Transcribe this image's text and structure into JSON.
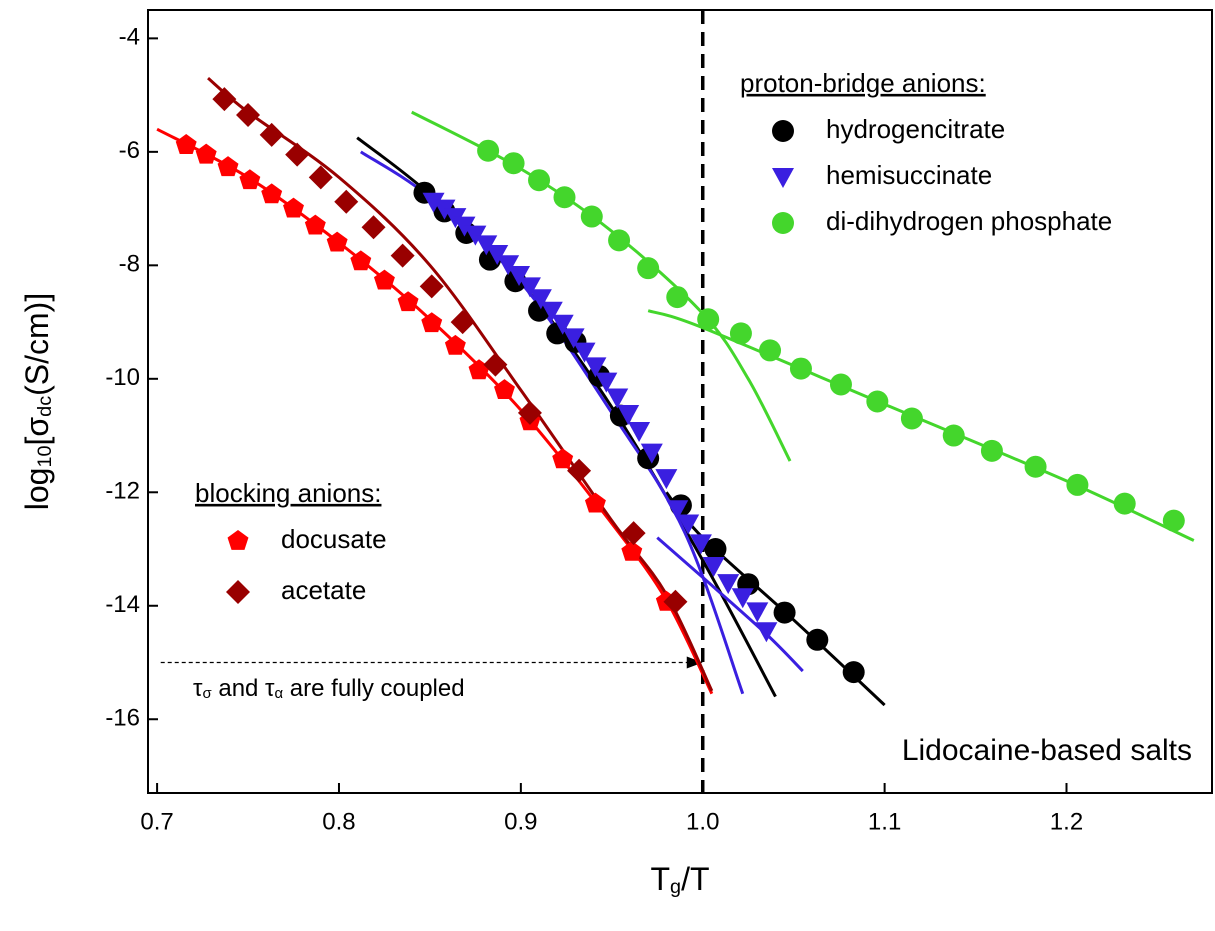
{
  "chart_data": {
    "type": "scatter",
    "x_label": [
      "T",
      "g",
      "/T"
    ],
    "y_label": [
      "log",
      "10",
      "[σ",
      "dc",
      "(S/cm)]"
    ],
    "xlim": [
      0.695,
      1.28
    ],
    "ylim": [
      -17.3,
      -3.5
    ],
    "xticks": [
      0.7,
      0.8,
      0.9,
      {
        "value": 1,
        "label": "1.0"
      },
      1.1,
      1.2
    ],
    "yticks": [
      -4,
      -6,
      -8,
      -10,
      -12,
      -14,
      -16
    ],
    "vline": 1,
    "arrow": {
      "x": [
        0.702,
        1.0
      ],
      "y": -15,
      "text": [
        "τ",
        "σ",
        " and τ",
        "α",
        " are fully coupled"
      ]
    },
    "annotation": "Lidocaine-based salts",
    "groups": [
      {
        "title": "proton-bridge anions:",
        "corner": "upper right",
        "series": [
          {
            "name": "hydrogencitrate",
            "marker": "circle",
            "color": "#000000",
            "x": [
              0.847,
              0.858,
              0.87,
              0.883,
              0.897,
              0.91,
              0.92,
              0.93,
              0.943,
              0.955,
              0.97,
              0.988,
              1.007,
              1.025,
              1.045,
              1.063,
              1.083
            ],
            "values": [
              -6.72,
              -7.05,
              -7.43,
              -7.9,
              -8.28,
              -8.8,
              -9.2,
              -9.35,
              -9.95,
              -10.65,
              -11.4,
              -12.23,
              -13.0,
              -13.62,
              -14.12,
              -14.6,
              -15.17
            ],
            "fits": [
              {
                "x": [
                  0.81,
                  0.85,
                  0.9,
                  0.95,
                  1.0,
                  1.04
                ],
                "values": [
                  -5.75,
                  -6.75,
                  -8.3,
                  -10.5,
                  -13.2,
                  -15.6
                ]
              },
              {
                "x": [
                  0.98,
                  1.0,
                  1.05,
                  1.1
                ],
                "values": [
                  -12.0,
                  -12.8,
                  -14.25,
                  -15.75
                ]
              }
            ]
          },
          {
            "name": "hemisuccinate",
            "marker": "triangle-down",
            "color": "#3a1fe0",
            "x": [
              0.852,
              0.858,
              0.864,
              0.869,
              0.875,
              0.881,
              0.887,
              0.893,
              0.899,
              0.905,
              0.911,
              0.917,
              0.923,
              0.929,
              0.935,
              0.941,
              0.947,
              0.953,
              0.959,
              0.965,
              0.972,
              0.98,
              0.986,
              0.992,
              0.999,
              1.006,
              1.014,
              1.022,
              1.03,
              1.035
            ],
            "values": [
              -6.88,
              -7.0,
              -7.15,
              -7.3,
              -7.46,
              -7.63,
              -7.8,
              -7.98,
              -8.17,
              -8.37,
              -8.58,
              -8.8,
              -9.03,
              -9.27,
              -9.52,
              -9.78,
              -10.05,
              -10.33,
              -10.62,
              -10.92,
              -11.3,
              -11.75,
              -12.3,
              -12.55,
              -12.9,
              -13.3,
              -13.6,
              -13.85,
              -14.1,
              -14.45
            ],
            "fits": [
              {
                "x": [
                  0.812,
                  0.85,
                  0.9,
                  0.95,
                  0.99,
                  1.022
                ],
                "values": [
                  -6.0,
                  -6.8,
                  -8.3,
                  -10.6,
                  -12.7,
                  -15.55
                ]
              },
              {
                "x": [
                  0.975,
                  1.0,
                  1.035,
                  1.055
                ],
                "values": [
                  -12.8,
                  -13.5,
                  -14.5,
                  -15.15
                ]
              }
            ]
          },
          {
            "name": "di-dihydrogen phosphate",
            "marker": "circle",
            "color": "#44d62c",
            "x": [
              0.882,
              0.896,
              0.91,
              0.924,
              0.939,
              0.954,
              0.97,
              0.986,
              1.003,
              1.021,
              1.037,
              1.054,
              1.076,
              1.096,
              1.115,
              1.138,
              1.159,
              1.183,
              1.206,
              1.232,
              1.259
            ],
            "values": [
              -5.98,
              -6.2,
              -6.5,
              -6.8,
              -7.14,
              -7.56,
              -8.05,
              -8.56,
              -8.95,
              -9.2,
              -9.5,
              -9.82,
              -10.1,
              -10.4,
              -10.7,
              -11.0,
              -11.27,
              -11.55,
              -11.87,
              -12.2,
              -12.5
            ],
            "fits": [
              {
                "x": [
                  0.84,
                  0.9,
                  0.95,
                  1.0,
                  1.025,
                  1.048
                ],
                "values": [
                  -5.3,
                  -6.3,
                  -7.4,
                  -8.85,
                  -10.0,
                  -11.45
                ]
              },
              {
                "x": [
                  0.97,
                  1.0,
                  1.1,
                  1.2,
                  1.27
                ],
                "values": [
                  -8.8,
                  -9.1,
                  -10.45,
                  -11.8,
                  -12.85
                ]
              }
            ]
          }
        ]
      },
      {
        "title": "blocking anions:",
        "corner": "lower left",
        "series": [
          {
            "name": "docusate",
            "marker": "pentagon",
            "color": "#ff0000",
            "x": [
              0.716,
              0.727,
              0.739,
              0.751,
              0.763,
              0.775,
              0.787,
              0.799,
              0.812,
              0.825,
              0.838,
              0.851,
              0.864,
              0.877,
              0.891,
              0.905,
              0.923,
              0.941,
              0.961,
              0.98
            ],
            "values": [
              -5.88,
              -6.05,
              -6.27,
              -6.5,
              -6.75,
              -7.0,
              -7.3,
              -7.6,
              -7.93,
              -8.27,
              -8.65,
              -9.02,
              -9.42,
              -9.85,
              -10.2,
              -10.75,
              -11.42,
              -12.2,
              -13.05,
              -13.93
            ],
            "fits": [
              {
                "x": [
                  0.7,
                  0.75,
                  0.8,
                  0.85,
                  0.9,
                  0.95,
                  0.98,
                  1.005
                ],
                "values": [
                  -5.6,
                  -6.45,
                  -7.6,
                  -8.95,
                  -10.55,
                  -12.55,
                  -13.9,
                  -15.55
                ]
              }
            ]
          },
          {
            "name": "acetate",
            "marker": "diamond",
            "color": "#990000",
            "x": [
              0.737,
              0.75,
              0.763,
              0.777,
              0.79,
              0.804,
              0.819,
              0.835,
              0.851,
              0.868,
              0.886,
              0.905,
              0.932,
              0.962,
              0.985
            ],
            "values": [
              -5.07,
              -5.35,
              -5.7,
              -6.05,
              -6.45,
              -6.88,
              -7.33,
              -7.83,
              -8.37,
              -9.0,
              -9.75,
              -10.6,
              -11.62,
              -12.72,
              -13.93
            ],
            "fits": [
              {
                "x": [
                  0.728,
                  0.75,
                  0.8,
                  0.85,
                  0.9,
                  0.95,
                  0.98,
                  1.005
                ],
                "values": [
                  -4.7,
                  -5.3,
                  -6.45,
                  -8.0,
                  -10.2,
                  -12.5,
                  -13.8,
                  -15.5
                ]
              }
            ]
          }
        ]
      }
    ]
  }
}
